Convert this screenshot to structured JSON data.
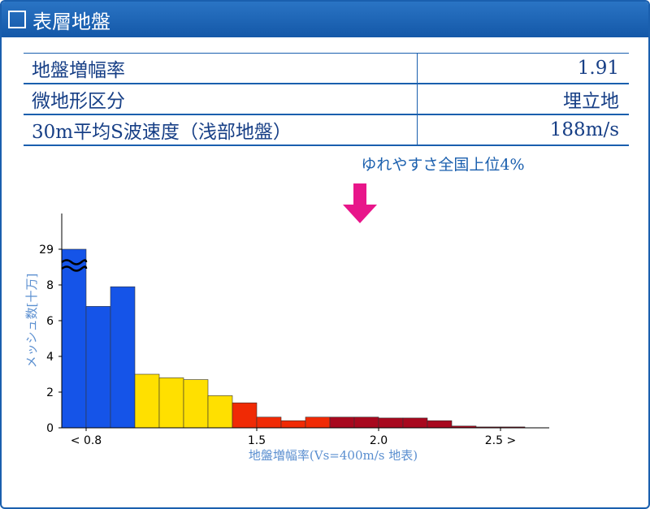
{
  "header": {
    "title": "表層地盤"
  },
  "table": {
    "rows": [
      [
        "地盤増幅率",
        "1.91"
      ],
      [
        "微地形区分",
        "埋立地"
      ],
      [
        "30m平均S波速度（浅部地盤）",
        "188m/s"
      ]
    ]
  },
  "chart_data": {
    "type": "histogram",
    "annotation": "ゆれやすさ全国上位4%",
    "xlabel": "地盤増幅率(Vs=400m/s 地表)",
    "ylabel": "メッシュ数[十万]",
    "bins": [
      0.7,
      0.8,
      0.9,
      1.0,
      1.1,
      1.2,
      1.3,
      1.4,
      1.5,
      1.6,
      1.7,
      1.8,
      1.9,
      2.0,
      2.1,
      2.2,
      2.3,
      2.4,
      2.5,
      2.6
    ],
    "values": [
      29,
      6.8,
      7.9,
      3.0,
      2.8,
      2.7,
      1.8,
      1.4,
      0.6,
      0.4,
      0.6,
      0.6,
      0.6,
      0.55,
      0.55,
      0.4,
      0.1,
      0.05,
      0.05
    ],
    "colors": [
      "#1554e8",
      "#1554e8",
      "#1554e8",
      "#ffe000",
      "#ffe000",
      "#ffe000",
      "#ffe000",
      "#f02a05",
      "#f02a05",
      "#f02a05",
      "#f02a05",
      "#a8081e",
      "#a8081e",
      "#a8081e",
      "#a8081e",
      "#a8081e",
      "#a8081e",
      "#a8081e",
      "#a8081e"
    ],
    "xlim": [
      0.7,
      2.7
    ],
    "xticks": [
      {
        "value": 0.8,
        "label": "< 0.8"
      },
      1.5,
      {
        "value": 2,
        "label": "2.0"
      },
      {
        "value": 2.5,
        "label": "2.5 >"
      }
    ],
    "ylim": [
      0,
      31
    ],
    "yticks": [
      0,
      2,
      4,
      6,
      8,
      29
    ],
    "ybreak": [
      8,
      29
    ]
  }
}
